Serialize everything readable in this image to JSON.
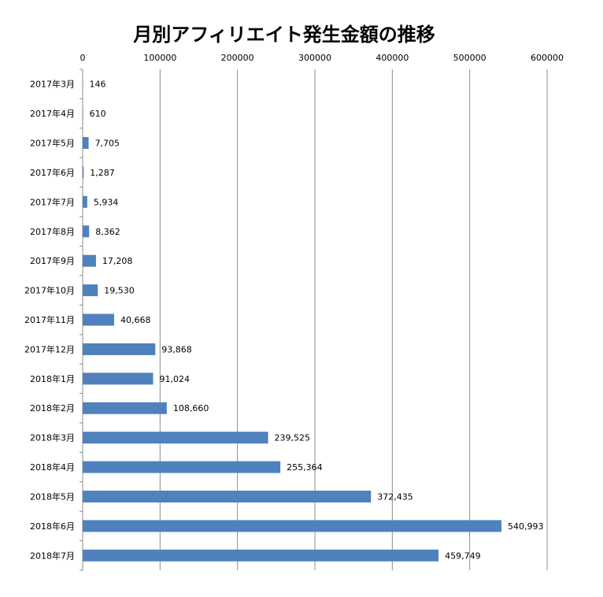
{
  "chart_data": {
    "type": "bar",
    "orientation": "horizontal",
    "title": "月別アフィリエイト発生金額の推移",
    "xlabel": "",
    "ylabel": "",
    "xlim": [
      0,
      600000
    ],
    "x_ticks": [
      0,
      100000,
      200000,
      300000,
      400000,
      500000,
      600000
    ],
    "x_tick_labels": [
      "0",
      "100000",
      "200000",
      "300000",
      "400000",
      "500000",
      "600000"
    ],
    "x_axis_position": "top",
    "grid": true,
    "bar_color": "#4F81BD",
    "categories": [
      "2017年3月",
      "2017年4月",
      "2017年5月",
      "2017年6月",
      "2017年7月",
      "2017年8月",
      "2017年9月",
      "2017年10月",
      "2017年11月",
      "2017年12月",
      "2018年1月",
      "2018年2月",
      "2018年3月",
      "2018年4月",
      "2018年5月",
      "2018年6月",
      "2018年7月"
    ],
    "values": [
      146,
      610,
      7705,
      1287,
      5934,
      8362,
      17208,
      19530,
      40668,
      93868,
      91024,
      108660,
      239525,
      255364,
      372435,
      540993,
      459749
    ],
    "value_labels": [
      "146",
      "610",
      "7,705",
      "1,287",
      "5,934",
      "8,362",
      "17,208",
      "19,530",
      "40,668",
      "93,868",
      "91,024",
      "108,660",
      "239,525",
      "255,364",
      "372,435",
      "540,993",
      "459,749"
    ]
  }
}
